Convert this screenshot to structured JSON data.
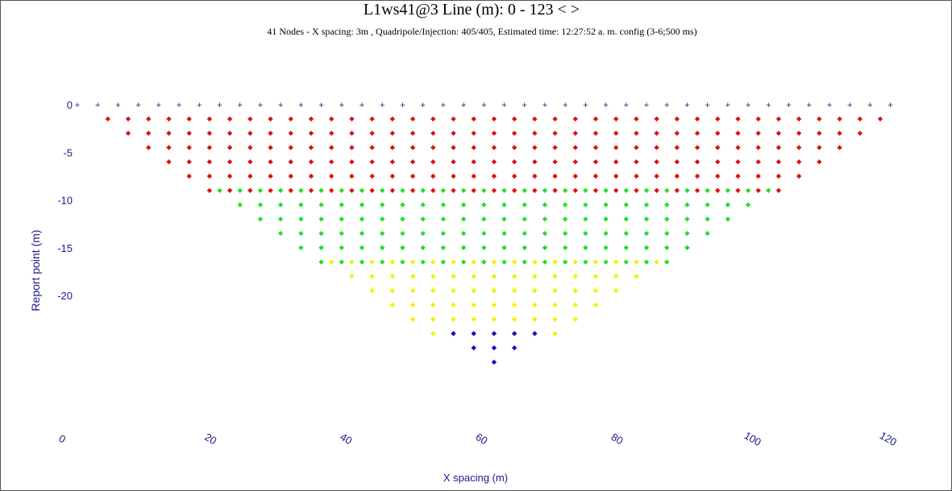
{
  "chart_data": {
    "type": "scatter",
    "title": "L1ws41@3   Line (m): 0 - 123 < >",
    "subtitle": "41 Nodes  - X spacing: 3m , Quadripole/Injection: 405/405, Estimated time: 12:27:52 a. m. config (3-6;500 ms)",
    "xlabel": "X spacing (m)",
    "ylabel": "Report point (m)",
    "xlim": [
      0,
      123
    ],
    "ylim": [
      -23,
      0
    ],
    "x_ticks": [
      "0",
      "20",
      "40",
      "60",
      "80",
      "100",
      "120"
    ],
    "y_ticks": [
      "0",
      "-5",
      "-10",
      "-15",
      "-20"
    ],
    "electrodes": {
      "marker": "+",
      "color": "#1a1a8c",
      "x_start": 0,
      "x_step": 3,
      "count": 41,
      "y": 0
    },
    "series": [
      {
        "color": "#e01010",
        "marker": "diamond",
        "levels": [
          {
            "y": -1.5,
            "x_start": 4.5,
            "x_end": 118.5
          },
          {
            "y": -3.0,
            "x_start": 7.5,
            "x_end": 115.5
          },
          {
            "y": -4.5,
            "x_start": 10.5,
            "x_end": 112.5
          },
          {
            "y": -6.0,
            "x_start": 13.5,
            "x_end": 109.5
          },
          {
            "y": -7.5,
            "x_start": 16.5,
            "x_end": 106.5
          },
          {
            "y": -9.0,
            "x_start": 19.5,
            "x_end": 103.5
          }
        ]
      },
      {
        "color": "#22e022",
        "marker": "diamond",
        "levels": [
          {
            "y": -9.0,
            "x_start": 21.0,
            "x_end": 102.0
          },
          {
            "y": -10.5,
            "x_start": 24.0,
            "x_end": 99.0
          },
          {
            "y": -12.0,
            "x_start": 27.0,
            "x_end": 96.0
          },
          {
            "y": -13.5,
            "x_start": 30.0,
            "x_end": 93.0
          },
          {
            "y": -15.0,
            "x_start": 33.0,
            "x_end": 90.0
          },
          {
            "y": -16.5,
            "x_start": 36.0,
            "x_end": 87.0
          }
        ]
      },
      {
        "color": "#f2f200",
        "marker": "diamond",
        "levels": [
          {
            "y": -16.5,
            "x_start": 37.5,
            "x_end": 85.5
          },
          {
            "y": -18.0,
            "x_start": 40.5,
            "x_end": 82.5
          },
          {
            "y": -19.5,
            "x_start": 43.5,
            "x_end": 79.5
          },
          {
            "y": -21.0,
            "x_start": 46.5,
            "x_end": 76.5
          },
          {
            "y": -22.5,
            "x_start": 49.5,
            "x_end": 73.5
          },
          {
            "y": -24.0,
            "x_start": 52.5,
            "x_end": 70.5
          }
        ]
      },
      {
        "color": "#1010c8",
        "marker": "diamond",
        "levels": [
          {
            "y": -24.0,
            "x_start": 55.5,
            "x_end": 67.5
          },
          {
            "y": -25.5,
            "x_start": 58.5,
            "x_end": 64.5
          },
          {
            "y": -27.0,
            "x_start": 61.5,
            "x_end": 61.5
          }
        ]
      }
    ]
  }
}
